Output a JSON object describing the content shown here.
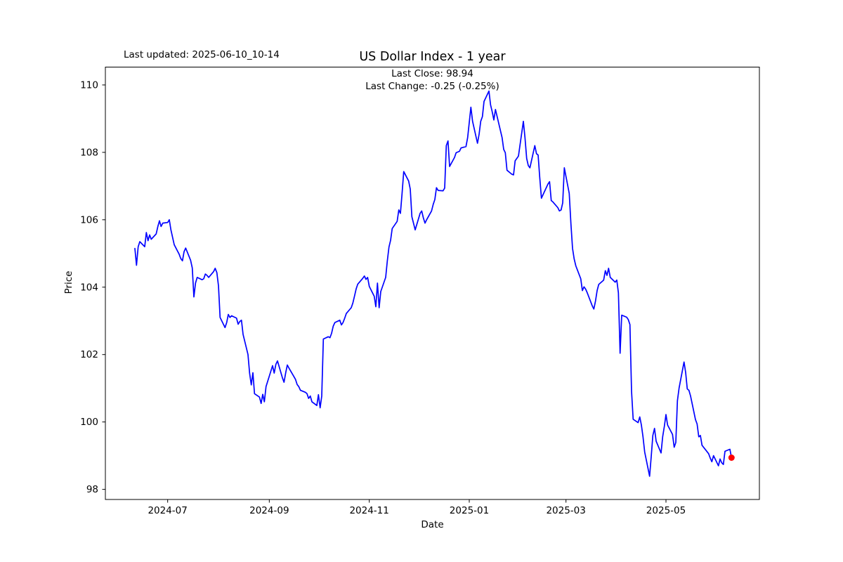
{
  "figure": {
    "last_updated_note": "Last updated: 2025-06-10_10-14",
    "title": "US Dollar Index - 1 year",
    "annotation_line1": "Last Close: 98.94",
    "annotation_line2": "Last Change: -0.25 (-0.25%)"
  },
  "chart_data": {
    "type": "line",
    "title": "US Dollar Index - 1 year",
    "xlabel": "Date",
    "ylabel": "Price",
    "legend": "none",
    "grid": false,
    "line_color": "#0000ff",
    "last_point_color": "#ff0000",
    "axis_color": "#000000",
    "background_color": "#ffffff",
    "last_close": 98.94,
    "last_change": "-0.25 (-0.25%)",
    "y_ticks": [
      98,
      100,
      102,
      104,
      106,
      108,
      110
    ],
    "ylim": [
      97.7,
      110.53
    ],
    "x_ticks": [
      {
        "label": "2024-07",
        "date": "2024-07-01"
      },
      {
        "label": "2024-09",
        "date": "2024-09-01"
      },
      {
        "label": "2024-11",
        "date": "2024-11-01"
      },
      {
        "label": "2025-01",
        "date": "2025-01-01"
      },
      {
        "label": "2025-03",
        "date": "2025-03-01"
      },
      {
        "label": "2025-05",
        "date": "2025-05-01"
      }
    ],
    "xlim_dates": [
      "2024-05-24",
      "2025-06-27"
    ],
    "series": [
      {
        "name": "US Dollar Index",
        "points": [
          [
            "2024-06-11",
            105.15
          ],
          [
            "2024-06-12",
            104.65
          ],
          [
            "2024-06-13",
            105.2
          ],
          [
            "2024-06-14",
            105.35
          ],
          [
            "2024-06-17",
            105.2
          ],
          [
            "2024-06-18",
            105.62
          ],
          [
            "2024-06-19",
            105.38
          ],
          [
            "2024-06-20",
            105.55
          ],
          [
            "2024-06-21",
            105.42
          ],
          [
            "2024-06-24",
            105.58
          ],
          [
            "2024-06-25",
            105.8
          ],
          [
            "2024-06-26",
            105.97
          ],
          [
            "2024-06-27",
            105.8
          ],
          [
            "2024-06-28",
            105.9
          ],
          [
            "2024-07-01",
            105.92
          ],
          [
            "2024-07-02",
            106.0
          ],
          [
            "2024-07-03",
            105.7
          ],
          [
            "2024-07-05",
            105.26
          ],
          [
            "2024-07-08",
            104.98
          ],
          [
            "2024-07-09",
            104.85
          ],
          [
            "2024-07-10",
            104.78
          ],
          [
            "2024-07-11",
            105.05
          ],
          [
            "2024-07-12",
            105.16
          ],
          [
            "2024-07-15",
            104.8
          ],
          [
            "2024-07-16",
            104.57
          ],
          [
            "2024-07-17",
            103.71
          ],
          [
            "2024-07-18",
            104.12
          ],
          [
            "2024-07-19",
            104.29
          ],
          [
            "2024-07-22",
            104.22
          ],
          [
            "2024-07-23",
            104.25
          ],
          [
            "2024-07-24",
            104.39
          ],
          [
            "2024-07-25",
            104.35
          ],
          [
            "2024-07-26",
            104.29
          ],
          [
            "2024-07-29",
            104.46
          ],
          [
            "2024-07-30",
            104.56
          ],
          [
            "2024-07-31",
            104.43
          ],
          [
            "2024-08-01",
            104.04
          ],
          [
            "2024-08-02",
            103.1
          ],
          [
            "2024-08-05",
            102.8
          ],
          [
            "2024-08-06",
            102.95
          ],
          [
            "2024-08-07",
            103.19
          ],
          [
            "2024-08-08",
            103.1
          ],
          [
            "2024-08-09",
            103.15
          ],
          [
            "2024-08-12",
            103.08
          ],
          [
            "2024-08-13",
            102.9
          ],
          [
            "2024-08-14",
            102.98
          ],
          [
            "2024-08-15",
            103.02
          ],
          [
            "2024-08-16",
            102.6
          ],
          [
            "2024-08-19",
            102.0
          ],
          [
            "2024-08-20",
            101.45
          ],
          [
            "2024-08-21",
            101.1
          ],
          [
            "2024-08-22",
            101.46
          ],
          [
            "2024-08-23",
            100.84
          ],
          [
            "2024-08-26",
            100.74
          ],
          [
            "2024-08-27",
            100.55
          ],
          [
            "2024-08-28",
            100.82
          ],
          [
            "2024-08-29",
            100.6
          ],
          [
            "2024-08-30",
            101.05
          ],
          [
            "2024-09-03",
            101.67
          ],
          [
            "2024-09-04",
            101.45
          ],
          [
            "2024-09-05",
            101.71
          ],
          [
            "2024-09-06",
            101.81
          ],
          [
            "2024-09-09",
            101.31
          ],
          [
            "2024-09-10",
            101.18
          ],
          [
            "2024-09-11",
            101.46
          ],
          [
            "2024-09-12",
            101.69
          ],
          [
            "2024-09-13",
            101.6
          ],
          [
            "2024-09-16",
            101.35
          ],
          [
            "2024-09-17",
            101.26
          ],
          [
            "2024-09-18",
            101.11
          ],
          [
            "2024-09-19",
            101.05
          ],
          [
            "2024-09-20",
            100.94
          ],
          [
            "2024-09-23",
            100.88
          ],
          [
            "2024-09-24",
            100.84
          ],
          [
            "2024-09-25",
            100.7
          ],
          [
            "2024-09-26",
            100.77
          ],
          [
            "2024-09-27",
            100.6
          ],
          [
            "2024-09-30",
            100.49
          ],
          [
            "2024-10-01",
            100.81
          ],
          [
            "2024-10-02",
            100.42
          ],
          [
            "2024-10-03",
            100.77
          ],
          [
            "2024-10-04",
            102.46
          ],
          [
            "2024-10-07",
            102.53
          ],
          [
            "2024-10-08",
            102.5
          ],
          [
            "2024-10-09",
            102.63
          ],
          [
            "2024-10-10",
            102.84
          ],
          [
            "2024-10-11",
            102.95
          ],
          [
            "2024-10-14",
            103.02
          ],
          [
            "2024-10-15",
            102.88
          ],
          [
            "2024-10-16",
            102.95
          ],
          [
            "2024-10-17",
            103.08
          ],
          [
            "2024-10-18",
            103.22
          ],
          [
            "2024-10-21",
            103.39
          ],
          [
            "2024-10-22",
            103.53
          ],
          [
            "2024-10-23",
            103.74
          ],
          [
            "2024-10-24",
            103.95
          ],
          [
            "2024-10-25",
            104.09
          ],
          [
            "2024-10-28",
            104.26
          ],
          [
            "2024-10-29",
            104.33
          ],
          [
            "2024-10-30",
            104.23
          ],
          [
            "2024-10-31",
            104.29
          ],
          [
            "2024-11-01",
            104.02
          ],
          [
            "2024-11-04",
            103.73
          ],
          [
            "2024-11-05",
            103.42
          ],
          [
            "2024-11-06",
            104.12
          ],
          [
            "2024-11-07",
            103.39
          ],
          [
            "2024-11-08",
            103.87
          ],
          [
            "2024-11-11",
            104.29
          ],
          [
            "2024-11-12",
            104.77
          ],
          [
            "2024-11-13",
            105.19
          ],
          [
            "2024-11-14",
            105.39
          ],
          [
            "2024-11-15",
            105.74
          ],
          [
            "2024-11-18",
            105.95
          ],
          [
            "2024-11-19",
            106.29
          ],
          [
            "2024-11-20",
            106.19
          ],
          [
            "2024-11-21",
            106.77
          ],
          [
            "2024-11-22",
            107.43
          ],
          [
            "2024-11-25",
            107.15
          ],
          [
            "2024-11-26",
            106.91
          ],
          [
            "2024-11-27",
            106.09
          ],
          [
            "2024-11-29",
            105.7
          ],
          [
            "2024-12-02",
            106.19
          ],
          [
            "2024-12-03",
            106.26
          ],
          [
            "2024-12-04",
            106.05
          ],
          [
            "2024-12-05",
            105.9
          ],
          [
            "2024-12-06",
            106.0
          ],
          [
            "2024-12-09",
            106.26
          ],
          [
            "2024-12-10",
            106.46
          ],
          [
            "2024-12-11",
            106.6
          ],
          [
            "2024-12-12",
            106.95
          ],
          [
            "2024-12-13",
            106.87
          ],
          [
            "2024-12-16",
            106.86
          ],
          [
            "2024-12-17",
            106.94
          ],
          [
            "2024-12-18",
            108.2
          ],
          [
            "2024-12-19",
            108.34
          ],
          [
            "2024-12-20",
            107.58
          ],
          [
            "2024-12-23",
            107.85
          ],
          [
            "2024-12-24",
            107.99
          ],
          [
            "2024-12-26",
            108.03
          ],
          [
            "2024-12-27",
            108.13
          ],
          [
            "2024-12-30",
            108.17
          ],
          [
            "2024-12-31",
            108.44
          ],
          [
            "2025-01-02",
            109.34
          ],
          [
            "2025-01-03",
            108.92
          ],
          [
            "2025-01-06",
            108.27
          ],
          [
            "2025-01-07",
            108.54
          ],
          [
            "2025-01-08",
            108.92
          ],
          [
            "2025-01-09",
            109.06
          ],
          [
            "2025-01-10",
            109.51
          ],
          [
            "2025-01-13",
            109.82
          ],
          [
            "2025-01-14",
            109.41
          ],
          [
            "2025-01-15",
            109.2
          ],
          [
            "2025-01-16",
            108.96
          ],
          [
            "2025-01-17",
            109.27
          ],
          [
            "2025-01-21",
            108.44
          ],
          [
            "2025-01-22",
            108.09
          ],
          [
            "2025-01-23",
            107.99
          ],
          [
            "2025-01-24",
            107.47
          ],
          [
            "2025-01-27",
            107.35
          ],
          [
            "2025-01-28",
            107.33
          ],
          [
            "2025-01-29",
            107.75
          ],
          [
            "2025-01-30",
            107.82
          ],
          [
            "2025-01-31",
            107.89
          ],
          [
            "2025-02-03",
            108.92
          ],
          [
            "2025-02-04",
            108.44
          ],
          [
            "2025-02-05",
            107.82
          ],
          [
            "2025-02-06",
            107.61
          ],
          [
            "2025-02-07",
            107.54
          ],
          [
            "2025-02-10",
            108.2
          ],
          [
            "2025-02-11",
            107.96
          ],
          [
            "2025-02-12",
            107.92
          ],
          [
            "2025-02-13",
            107.26
          ],
          [
            "2025-02-14",
            106.64
          ],
          [
            "2025-02-18",
            107.06
          ],
          [
            "2025-02-19",
            107.13
          ],
          [
            "2025-02-20",
            106.57
          ],
          [
            "2025-02-21",
            106.53
          ],
          [
            "2025-02-24",
            106.36
          ],
          [
            "2025-02-25",
            106.26
          ],
          [
            "2025-02-26",
            106.29
          ],
          [
            "2025-02-27",
            106.5
          ],
          [
            "2025-02-28",
            107.54
          ],
          [
            "2025-03-03",
            106.78
          ],
          [
            "2025-03-04",
            105.88
          ],
          [
            "2025-03-05",
            105.15
          ],
          [
            "2025-03-06",
            104.84
          ],
          [
            "2025-03-07",
            104.63
          ],
          [
            "2025-03-10",
            104.25
          ],
          [
            "2025-03-11",
            103.9
          ],
          [
            "2025-03-12",
            104.01
          ],
          [
            "2025-03-13",
            103.94
          ],
          [
            "2025-03-14",
            103.83
          ],
          [
            "2025-03-17",
            103.45
          ],
          [
            "2025-03-18",
            103.35
          ],
          [
            "2025-03-19",
            103.59
          ],
          [
            "2025-03-20",
            103.9
          ],
          [
            "2025-03-21",
            104.08
          ],
          [
            "2025-03-24",
            104.21
          ],
          [
            "2025-03-25",
            104.49
          ],
          [
            "2025-03-26",
            104.35
          ],
          [
            "2025-03-27",
            104.56
          ],
          [
            "2025-03-28",
            104.29
          ],
          [
            "2025-03-31",
            104.15
          ],
          [
            "2025-04-01",
            104.21
          ],
          [
            "2025-04-02",
            103.83
          ],
          [
            "2025-04-03",
            102.04
          ],
          [
            "2025-04-04",
            103.17
          ],
          [
            "2025-04-07",
            103.11
          ],
          [
            "2025-04-08",
            103.04
          ],
          [
            "2025-04-09",
            102.89
          ],
          [
            "2025-04-10",
            100.91
          ],
          [
            "2025-04-11",
            100.08
          ],
          [
            "2025-04-14",
            99.98
          ],
          [
            "2025-04-15",
            100.15
          ],
          [
            "2025-04-16",
            99.91
          ],
          [
            "2025-04-17",
            99.56
          ],
          [
            "2025-04-18",
            99.11
          ],
          [
            "2025-04-21",
            98.39
          ],
          [
            "2025-04-22",
            98.97
          ],
          [
            "2025-04-23",
            99.6
          ],
          [
            "2025-04-24",
            99.81
          ],
          [
            "2025-04-25",
            99.43
          ],
          [
            "2025-04-28",
            99.08
          ],
          [
            "2025-04-29",
            99.56
          ],
          [
            "2025-04-30",
            99.87
          ],
          [
            "2025-05-01",
            100.22
          ],
          [
            "2025-05-02",
            99.91
          ],
          [
            "2025-05-05",
            99.63
          ],
          [
            "2025-05-06",
            99.25
          ],
          [
            "2025-05-07",
            99.39
          ],
          [
            "2025-05-08",
            100.63
          ],
          [
            "2025-05-09",
            101.01
          ],
          [
            "2025-05-12",
            101.78
          ],
          [
            "2025-05-13",
            101.47
          ],
          [
            "2025-05-14",
            100.98
          ],
          [
            "2025-05-15",
            100.94
          ],
          [
            "2025-05-16",
            100.77
          ],
          [
            "2025-05-19",
            100.07
          ],
          [
            "2025-05-20",
            99.94
          ],
          [
            "2025-05-21",
            99.56
          ],
          [
            "2025-05-22",
            99.6
          ],
          [
            "2025-05-23",
            99.31
          ],
          [
            "2025-05-27",
            99.06
          ],
          [
            "2025-05-28",
            98.93
          ],
          [
            "2025-05-29",
            98.82
          ],
          [
            "2025-05-30",
            99.0
          ],
          [
            "2025-06-02",
            98.7
          ],
          [
            "2025-06-03",
            98.9
          ],
          [
            "2025-06-04",
            98.79
          ],
          [
            "2025-06-05",
            98.74
          ],
          [
            "2025-06-06",
            99.13
          ],
          [
            "2025-06-09",
            99.19
          ],
          [
            "2025-06-10",
            98.94
          ]
        ]
      }
    ]
  }
}
